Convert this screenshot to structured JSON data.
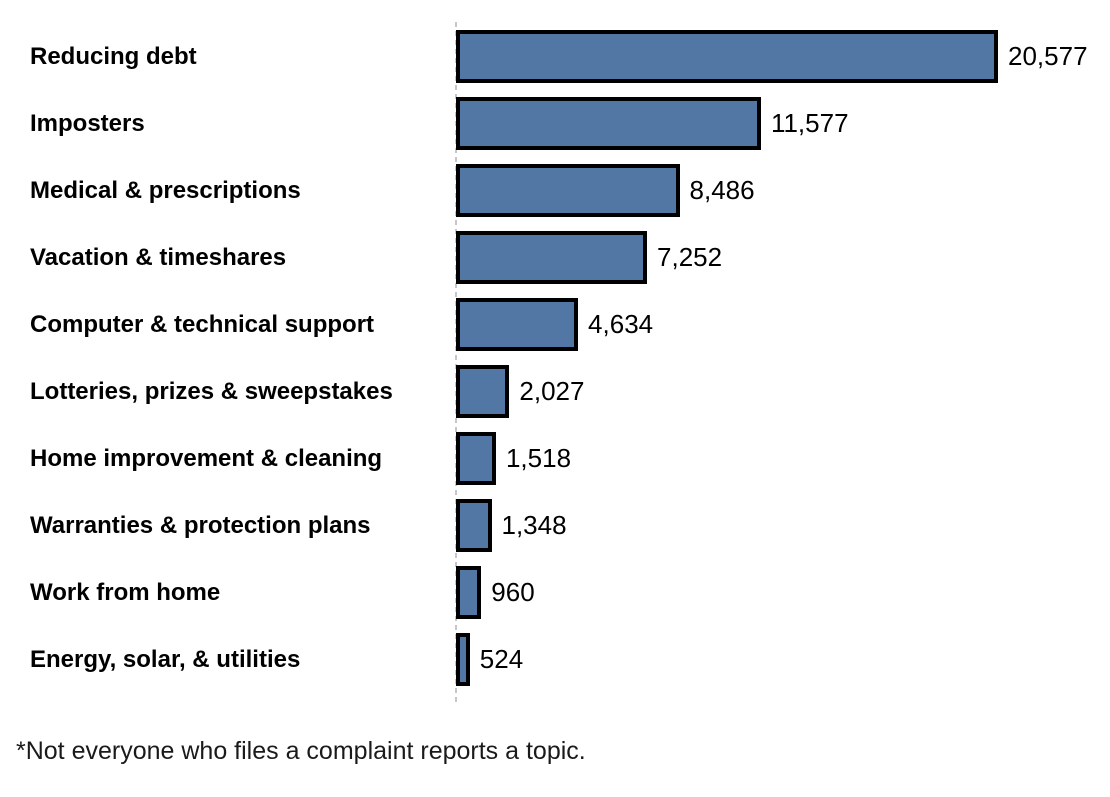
{
  "chart_data": {
    "type": "bar",
    "orientation": "horizontal",
    "title": "",
    "xlabel": "",
    "ylabel": "",
    "categories": [
      "Reducing debt",
      "Imposters",
      "Medical & prescriptions",
      "Vacation & timeshares",
      "Computer & technical support",
      "Lotteries, prizes & sweepstakes",
      "Home improvement & cleaning",
      "Warranties & protection plans",
      "Work from home",
      "Energy, solar, & utilities"
    ],
    "values": [
      20577,
      11577,
      8486,
      7252,
      4634,
      2027,
      1518,
      1348,
      960,
      524
    ],
    "value_labels": [
      "20,577",
      "11,577",
      "8,486",
      "7,252",
      "4,634",
      "2,027",
      "1,518",
      "1,348",
      "960",
      "524"
    ],
    "xlim": [
      0,
      20577
    ],
    "grid": false,
    "legend": false,
    "bar_color": "#5377A5",
    "bar_border_color": "#000000",
    "axis_line_color": "#c6c6c6",
    "axis_line_style": "dashed"
  },
  "footnote": "*Not everyone who files a complaint reports a topic."
}
